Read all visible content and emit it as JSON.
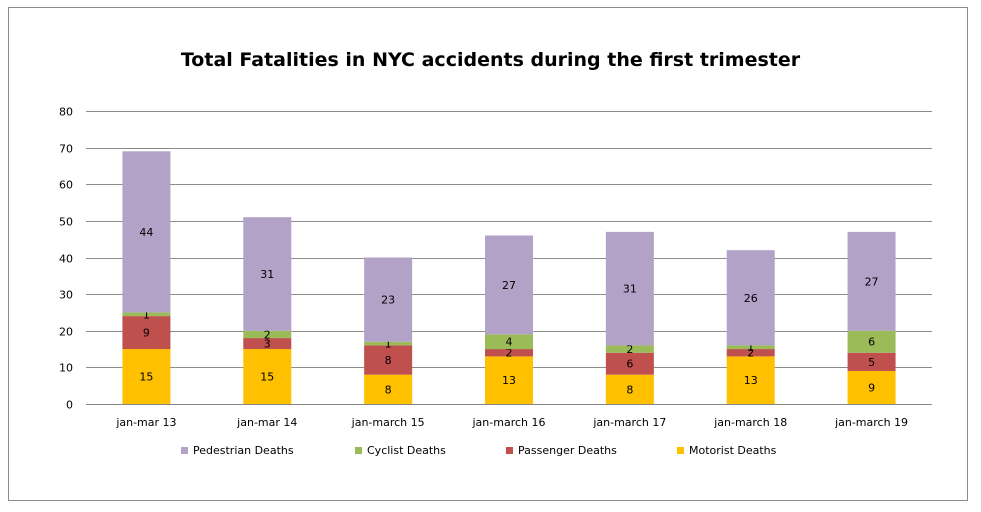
{
  "chart_data": {
    "type": "bar",
    "stacked": true,
    "title": "Total Fatalities in NYC accidents during the first trimester",
    "xlabel": "",
    "ylabel": "",
    "ylim": [
      0,
      80
    ],
    "yticks": [
      "0",
      "10",
      "20",
      "30",
      "40",
      "50",
      "60",
      "70",
      "80"
    ],
    "grid": true,
    "legend_position": "bottom",
    "categories": [
      "jan-mar 13",
      "jan-mar 14",
      "jan-march 15",
      "jan-march 16",
      "jan-march 17",
      "jan-march 18",
      "jan-march 19"
    ],
    "series": [
      {
        "name": "Motorist Deaths",
        "color": "#ffc000",
        "values": [
          15,
          15,
          8,
          13,
          8,
          13,
          9
        ]
      },
      {
        "name": "Passenger Deaths",
        "color": "#c0504d",
        "values": [
          9,
          3,
          8,
          2,
          6,
          2,
          5
        ]
      },
      {
        "name": "Cyclist Deaths",
        "color": "#9bbb59",
        "values": [
          1,
          2,
          1,
          4,
          2,
          1,
          6
        ]
      },
      {
        "name": "Pedestrian Deaths",
        "color": "#b3a2c7",
        "values": [
          44,
          31,
          23,
          27,
          31,
          26,
          27
        ]
      }
    ],
    "legend_order": [
      "Pedestrian Deaths",
      "Cyclist Deaths",
      "Passenger Deaths",
      "Motorist Deaths"
    ]
  }
}
